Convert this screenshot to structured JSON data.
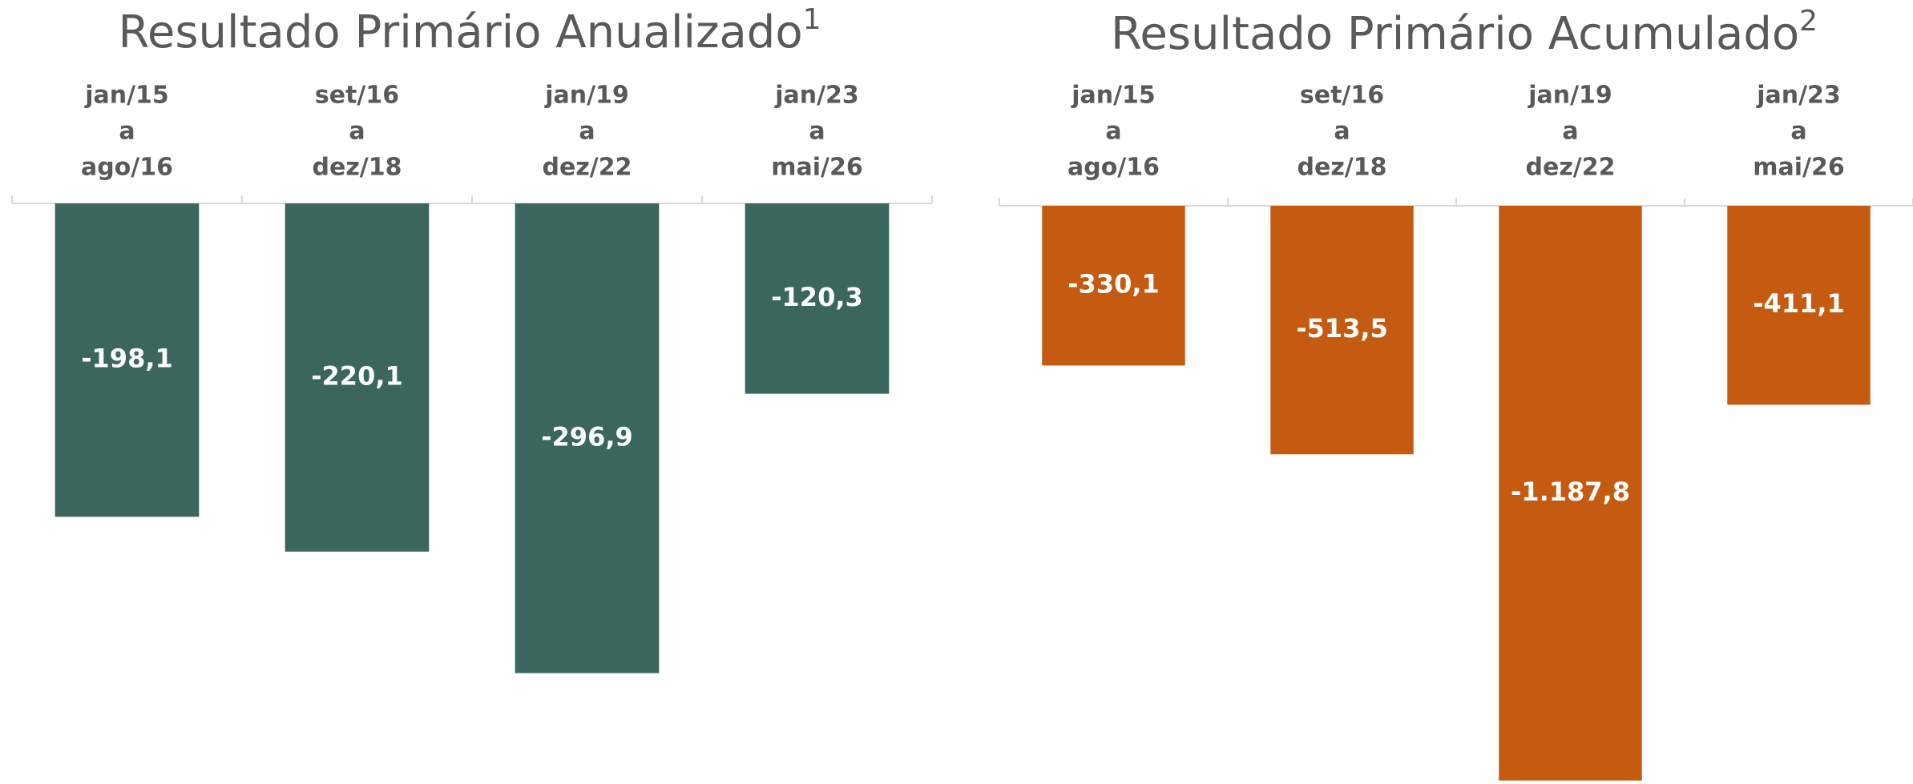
{
  "chart_data": [
    {
      "type": "bar",
      "title": "Resultado Primário Anualizado",
      "title_note": "1",
      "categories": [
        [
          "jan/15",
          "a",
          "ago/16"
        ],
        [
          "set/16",
          "a",
          "dez/18"
        ],
        [
          "jan/19",
          "a",
          "dez/22"
        ],
        [
          "jan/23",
          "a",
          "mai/26"
        ]
      ],
      "values": [
        -198.1,
        -220.1,
        -296.9,
        -120.3
      ],
      "value_labels": [
        "-198,1",
        "-220,1",
        "-296,9",
        "-120,3"
      ],
      "color": "#3a665e",
      "ylim": [
        -367,
        0
      ]
    },
    {
      "type": "bar",
      "title": "Resultado Primário Acumulado",
      "title_note": "2",
      "categories": [
        [
          "jan/15",
          "a",
          "ago/16"
        ],
        [
          "set/16",
          "a",
          "dez/18"
        ],
        [
          "jan/19",
          "a",
          "dez/22"
        ],
        [
          "jan/23",
          "a",
          "mai/26"
        ]
      ],
      "values": [
        -330.1,
        -513.5,
        -1187.8,
        -411.1
      ],
      "value_labels": [
        "-330,1",
        "-513,5",
        "-1.187,8",
        "-411,1"
      ],
      "color": "#c55a11",
      "ylim": [
        -1195,
        0
      ]
    }
  ]
}
